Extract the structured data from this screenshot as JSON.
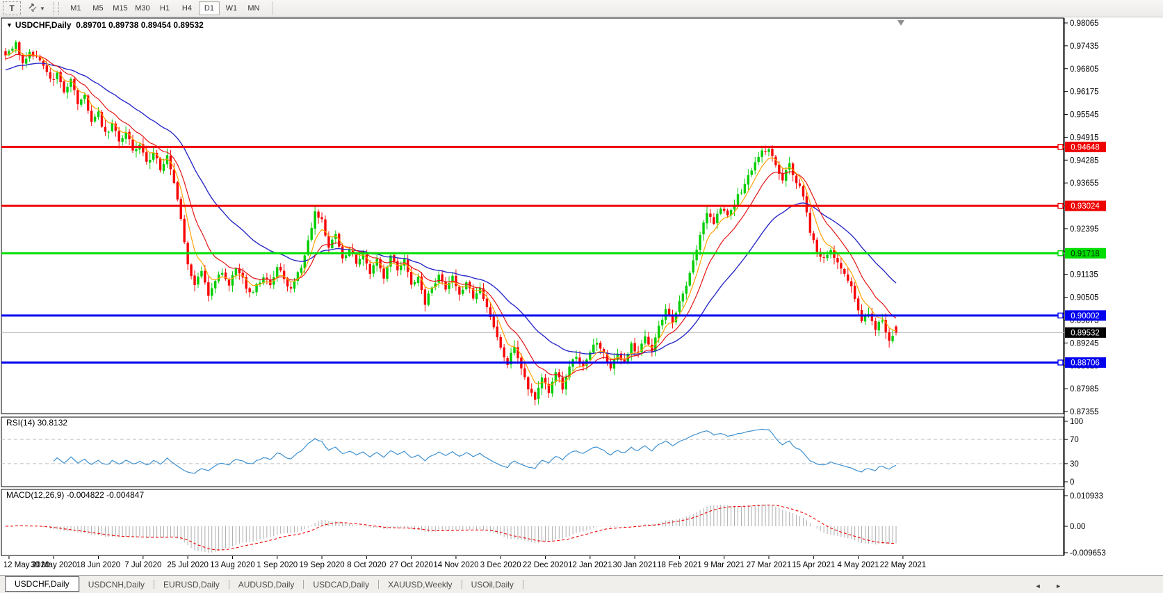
{
  "toolbar": {
    "text_tool_label": "T",
    "timeframes": [
      "M1",
      "M5",
      "M15",
      "M30",
      "H1",
      "H4",
      "D1",
      "W1",
      "MN"
    ],
    "active_timeframe": "D1"
  },
  "icons": {
    "chart_title_marker": "▼",
    "dropdown_caret": "▼",
    "tab_scroll_left": "◄",
    "tab_scroll_right": "►"
  },
  "chart": {
    "title": "USDCHF,Daily",
    "quotes": "0.89701 0.89738 0.89454 0.89532",
    "rsi_label": "RSI(14) 30.8132",
    "macd_label": "MACD(12,26,9) -0.004822 -0.004847"
  },
  "tabs": [
    {
      "label": "USDCHF,Daily",
      "active": true
    },
    {
      "label": "USDCNH,Daily",
      "active": false
    },
    {
      "label": "EURUSD,Daily",
      "active": false
    },
    {
      "label": "AUDUSD,Daily",
      "active": false
    },
    {
      "label": "USDCAD,Daily",
      "active": false
    },
    {
      "label": "XAUUSD,Weekly",
      "active": false
    },
    {
      "label": "USOil,Daily",
      "active": false
    }
  ],
  "chart_data": {
    "type": "candlestick",
    "symbol": "USDCHF",
    "timeframe": "Daily",
    "last_quote": {
      "open": "0.89701",
      "high": "0.89738",
      "low": "0.89454",
      "close": "0.89532"
    },
    "x_labels": [
      "12 May 2020",
      "30 May 2020",
      "18 Jun 2020",
      "7 Jul 2020",
      "25 Jul 2020",
      "13 Aug 2020",
      "1 Sep 2020",
      "19 Sep 2020",
      "8 Oct 2020",
      "27 Oct 2020",
      "14 Nov 2020",
      "3 Dec 2020",
      "22 Dec 2020",
      "12 Jan 2021",
      "30 Jan 2021",
      "18 Feb 2021",
      "9 Mar 2021",
      "27 Mar 2021",
      "15 Apr 2021",
      "4 May 2021",
      "22 May 2021"
    ],
    "bars_per_label": 13,
    "num_bars": 260,
    "y_range": {
      "top": 0.98065,
      "bottom": 0.87355
    },
    "y_ticks": [
      "0.98065",
      "0.97435",
      "0.96805",
      "0.96175",
      "0.95545",
      "0.94915",
      "0.94285",
      "0.93655",
      "0.93025",
      "0.92395",
      "0.91765",
      "0.91135",
      "0.90505",
      "0.89875",
      "0.89245",
      "0.88615",
      "0.87985",
      "0.87355"
    ],
    "levels": [
      {
        "price": "0.94648",
        "color": "#ee0000",
        "text_color": "#ffffff",
        "width": 3
      },
      {
        "price": "0.93024",
        "color": "#ee0000",
        "text_color": "#ffffff",
        "width": 3
      },
      {
        "price": "0.91718",
        "color": "#00dd00",
        "text_color": "#003300",
        "width": 3
      },
      {
        "price": "0.90002",
        "color": "#0000ee",
        "text_color": "#ffffff",
        "width": 3
      },
      {
        "price": "0.88706",
        "color": "#0000ee",
        "text_color": "#ffffff",
        "width": 3
      }
    ],
    "current_price": {
      "value": "0.89532",
      "line_color": "#bdbdbd",
      "box_color": "#000000",
      "text_color": "#ffffff"
    },
    "candle_colors": {
      "up": "#00ce00",
      "down": "#f90505"
    },
    "moving_averages": [
      {
        "name": "fast",
        "period": 6,
        "color": "#ffa200"
      },
      {
        "name": "mid",
        "period": 13,
        "color": "#e51414"
      },
      {
        "name": "slow",
        "period": 34,
        "color": "#2929c8"
      }
    ],
    "close_anchors": [
      [
        0,
        0.9712
      ],
      [
        2,
        0.974
      ],
      [
        3,
        0.9752
      ],
      [
        5,
        0.97
      ],
      [
        7,
        0.973
      ],
      [
        9,
        0.9708
      ],
      [
        11,
        0.9688
      ],
      [
        13,
        0.9648
      ],
      [
        15,
        0.9668
      ],
      [
        17,
        0.9618
      ],
      [
        19,
        0.9645
      ],
      [
        21,
        0.9585
      ],
      [
        23,
        0.9612
      ],
      [
        25,
        0.953
      ],
      [
        27,
        0.9555
      ],
      [
        29,
        0.95
      ],
      [
        31,
        0.9525
      ],
      [
        33,
        0.948
      ],
      [
        35,
        0.9512
      ],
      [
        37,
        0.9455
      ],
      [
        39,
        0.9468
      ],
      [
        41,
        0.942
      ],
      [
        43,
        0.9452
      ],
      [
        45,
        0.94
      ],
      [
        47,
        0.9435
      ],
      [
        49,
        0.9368
      ],
      [
        51,
        0.927
      ],
      [
        53,
        0.9148
      ],
      [
        55,
        0.9078
      ],
      [
        57,
        0.9122
      ],
      [
        59,
        0.9062
      ],
      [
        61,
        0.9095
      ],
      [
        63,
        0.9122
      ],
      [
        65,
        0.9088
      ],
      [
        67,
        0.9132
      ],
      [
        69,
        0.9098
      ],
      [
        71,
        0.9058
      ],
      [
        73,
        0.9082
      ],
      [
        75,
        0.9112
      ],
      [
        77,
        0.9088
      ],
      [
        79,
        0.9132
      ],
      [
        81,
        0.9102
      ],
      [
        83,
        0.9068
      ],
      [
        85,
        0.9112
      ],
      [
        87,
        0.9165
      ],
      [
        89,
        0.9245
      ],
      [
        90,
        0.929
      ],
      [
        92,
        0.9262
      ],
      [
        94,
        0.9195
      ],
      [
        96,
        0.9228
      ],
      [
        98,
        0.9152
      ],
      [
        100,
        0.9188
      ],
      [
        102,
        0.9135
      ],
      [
        104,
        0.9162
      ],
      [
        106,
        0.9118
      ],
      [
        108,
        0.9155
      ],
      [
        110,
        0.9098
      ],
      [
        112,
        0.9172
      ],
      [
        114,
        0.912
      ],
      [
        116,
        0.9162
      ],
      [
        118,
        0.9085
      ],
      [
        120,
        0.9112
      ],
      [
        122,
        0.9035
      ],
      [
        124,
        0.9072
      ],
      [
        126,
        0.9118
      ],
      [
        128,
        0.9072
      ],
      [
        130,
        0.9102
      ],
      [
        132,
        0.9062
      ],
      [
        134,
        0.9092
      ],
      [
        136,
        0.9048
      ],
      [
        138,
        0.9078
      ],
      [
        140,
        0.9022
      ],
      [
        142,
        0.8968
      ],
      [
        144,
        0.8912
      ],
      [
        146,
        0.8872
      ],
      [
        148,
        0.8918
      ],
      [
        150,
        0.8855
      ],
      [
        152,
        0.8792
      ],
      [
        154,
        0.8768
      ],
      [
        156,
        0.8825
      ],
      [
        158,
        0.8795
      ],
      [
        160,
        0.8845
      ],
      [
        162,
        0.8802
      ],
      [
        164,
        0.8858
      ],
      [
        166,
        0.8885
      ],
      [
        168,
        0.8862
      ],
      [
        170,
        0.8905
      ],
      [
        172,
        0.8925
      ],
      [
        174,
        0.8892
      ],
      [
        176,
        0.8858
      ],
      [
        178,
        0.8898
      ],
      [
        180,
        0.8872
      ],
      [
        182,
        0.8918
      ],
      [
        184,
        0.8892
      ],
      [
        186,
        0.8942
      ],
      [
        188,
        0.8908
      ],
      [
        190,
        0.8968
      ],
      [
        192,
        0.9015
      ],
      [
        194,
        0.8985
      ],
      [
        196,
        0.9032
      ],
      [
        198,
        0.9078
      ],
      [
        200,
        0.9145
      ],
      [
        202,
        0.9225
      ],
      [
        204,
        0.9288
      ],
      [
        206,
        0.9252
      ],
      [
        208,
        0.9298
      ],
      [
        210,
        0.9272
      ],
      [
        212,
        0.9312
      ],
      [
        214,
        0.9345
      ],
      [
        216,
        0.9388
      ],
      [
        218,
        0.9425
      ],
      [
        220,
        0.9448
      ],
      [
        222,
        0.9462
      ],
      [
        224,
        0.9415
      ],
      [
        226,
        0.9378
      ],
      [
        228,
        0.9418
      ],
      [
        230,
        0.9372
      ],
      [
        232,
        0.933
      ],
      [
        234,
        0.9225
      ],
      [
        236,
        0.9182
      ],
      [
        238,
        0.9152
      ],
      [
        240,
        0.9178
      ],
      [
        242,
        0.9148
      ],
      [
        244,
        0.9115
      ],
      [
        246,
        0.9078
      ],
      [
        248,
        0.9022
      ],
      [
        249,
        0.8988
      ],
      [
        251,
        0.9008
      ],
      [
        253,
        0.8962
      ],
      [
        255,
        0.8988
      ],
      [
        257,
        0.8935
      ],
      [
        259,
        0.8953
      ]
    ],
    "rsi": {
      "period": 14,
      "last_value": 30.8132,
      "scale_labels": [
        "100",
        "70",
        "30",
        "0"
      ],
      "scale_values": [
        100,
        70,
        30,
        0
      ],
      "dashed_levels": [
        70,
        30
      ],
      "color": "#3e90d0"
    },
    "macd": {
      "fast": 12,
      "slow": 26,
      "signal": 9,
      "values_display": [
        "-0.004822",
        "-0.004847"
      ],
      "scale_labels": [
        "0.010933",
        "0.00",
        "-0.009653"
      ],
      "histogram_color": "#ababab",
      "signal_color": "#ee0000"
    }
  }
}
